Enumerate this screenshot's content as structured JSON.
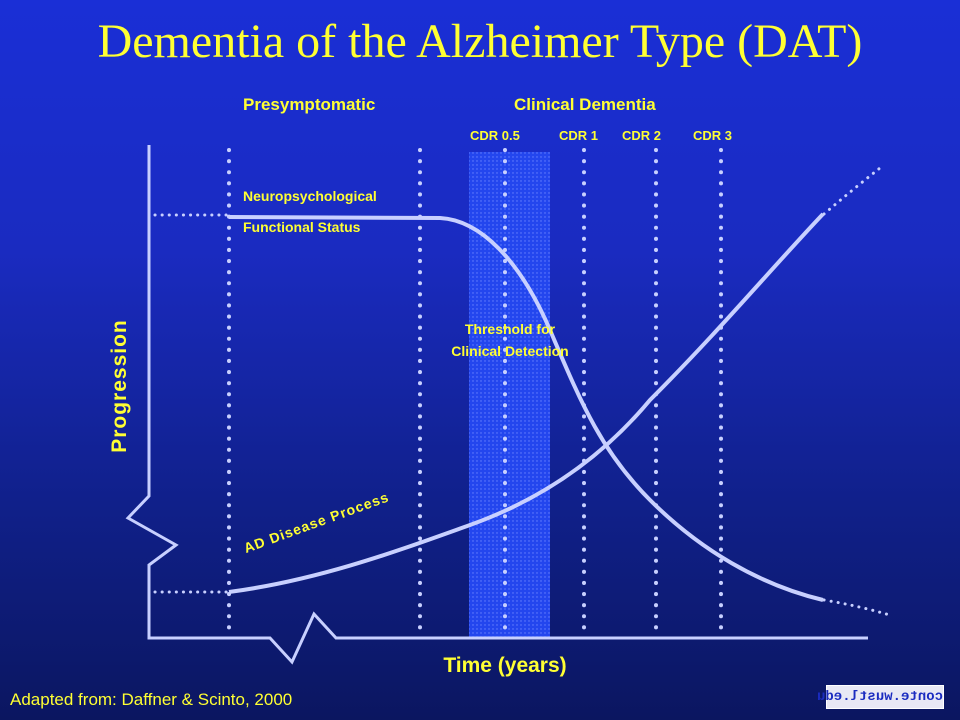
{
  "title": "Dementia of the Alzheimer Type (DAT)",
  "phases": {
    "presymptomatic": "Presymptomatic",
    "clinical": "Clinical Dementia"
  },
  "cdr": [
    "CDR 0.5",
    "CDR 1",
    "CDR 2",
    "CDR 3"
  ],
  "curves": {
    "neuro": "Neuropsychological",
    "functional": "Functional Status",
    "ad": "AD Disease Process"
  },
  "threshold": "Threshold for Clinical Detection",
  "axes": {
    "y": "Progression",
    "x": "Time (years)"
  },
  "source": "Adapted from: Daffner & Scinto, 2000",
  "logo": "conte.wustl.edu",
  "colors": {
    "title": "#ffff33",
    "curve": "#c8d0ff",
    "band": "#2a49f0"
  }
}
